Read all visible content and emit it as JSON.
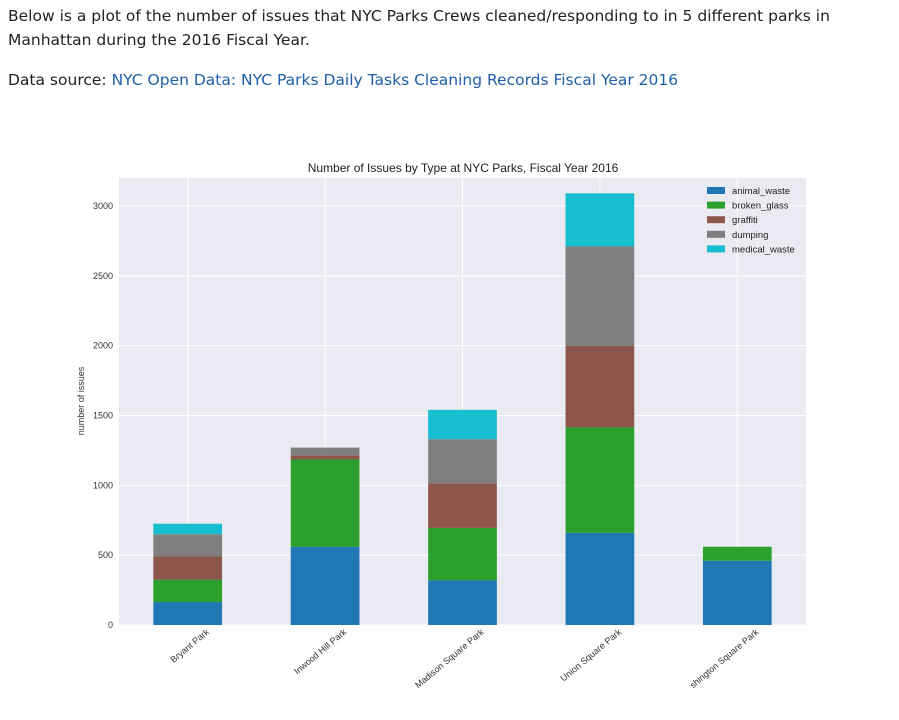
{
  "intro": "Below is a plot of the number of issues that NYC Parks Crews cleaned/responding to in 5 different parks in Manhattan during the 2016 Fiscal Year.",
  "source": {
    "prefix": "Data source: ",
    "link_text": "NYC Open Data: NYC Parks Daily Tasks Cleaning Records Fiscal Year 2016"
  },
  "chart_data": {
    "type": "bar",
    "stacked": true,
    "title": "Number of Issues by Type at NYC Parks, Fiscal Year 2016",
    "xlabel": "",
    "ylabel": "number of issues",
    "ylim": [
      0,
      3200
    ],
    "yticks": [
      0,
      500,
      1000,
      1500,
      2000,
      2500,
      3000
    ],
    "grid": true,
    "legend_position": "top-right",
    "categories": [
      "Bryant Park",
      "Inwood Hill Park",
      "Madison Square Park",
      "Union Square Park",
      "Washington Square Park"
    ],
    "category_labels_shown": [
      "Bryant Park",
      "Inwood Hill Park",
      "Madison Square Park",
      "Union Square Park",
      "shington Square Park"
    ],
    "series": [
      {
        "name": "animal_waste",
        "color": "#1f77b4",
        "values": [
          165,
          560,
          320,
          660,
          460
        ]
      },
      {
        "name": "broken_glass",
        "color": "#2ca02c",
        "values": [
          160,
          625,
          375,
          755,
          100
        ]
      },
      {
        "name": "graffiti",
        "color": "#8c564b",
        "values": [
          165,
          30,
          320,
          585,
          0
        ]
      },
      {
        "name": "dumping",
        "color": "#7f7f7f",
        "values": [
          160,
          55,
          315,
          710,
          0
        ]
      },
      {
        "name": "medical_waste",
        "color": "#17becf",
        "values": [
          75,
          0,
          210,
          380,
          0
        ]
      }
    ]
  }
}
